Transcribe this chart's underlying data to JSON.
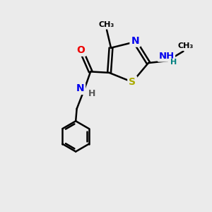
{
  "background_color": "#ebebeb",
  "bond_color": "#000000",
  "atom_colors": {
    "N": "#0000ee",
    "S": "#aaaa00",
    "O": "#ee0000",
    "C": "#000000",
    "H": "#555555"
  },
  "figsize": [
    3.0,
    3.0
  ],
  "dpi": 100,
  "xlim": [
    0,
    10
  ],
  "ylim": [
    0,
    10
  ]
}
